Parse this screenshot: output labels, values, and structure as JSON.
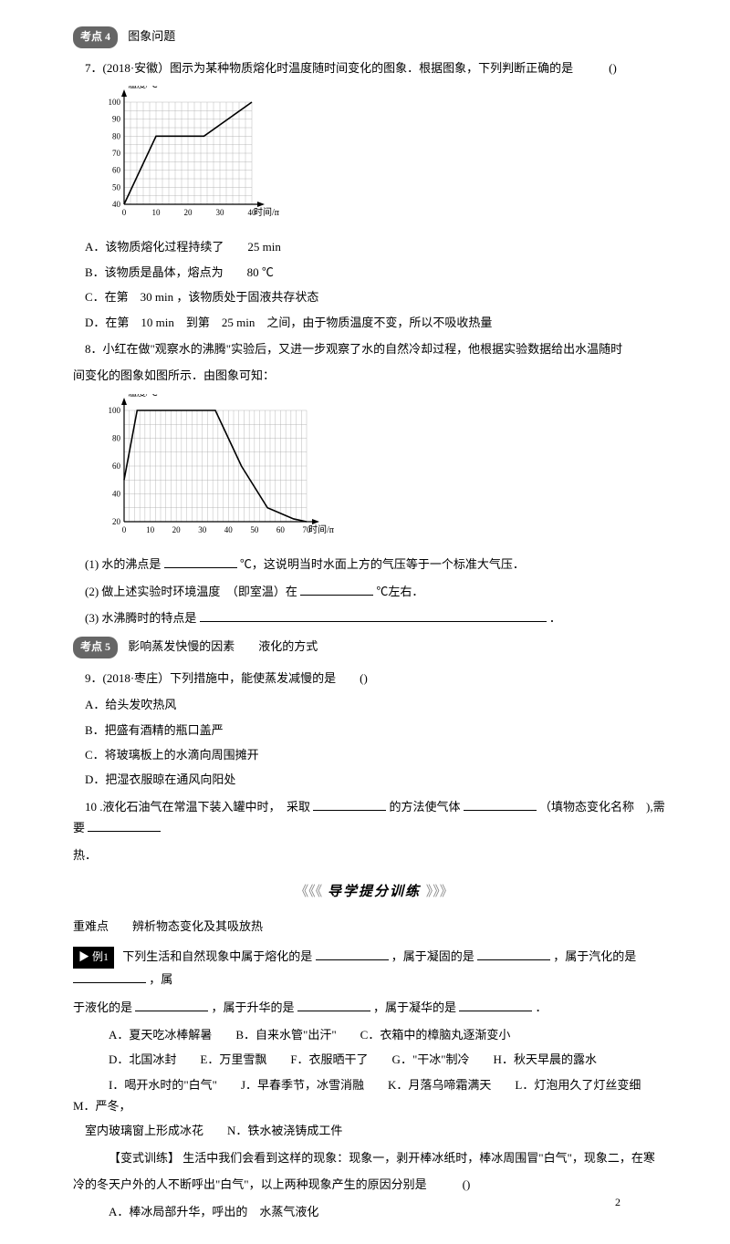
{
  "kaodian4": {
    "badge": "考点 4",
    "title": "图象问题"
  },
  "q7": {
    "stem": "7．(2018·安徽）图示为某种物质熔化时温度随时间变化的图象．根据图象，下列判断正确的是　　　()",
    "optA": "A．该物质熔化过程持续了　　25 min",
    "optB": "B．该物质是晶体，熔点为　　80 ℃",
    "optC": "C．在第　30 min ，该物质处于固液共存状态",
    "optD": "D．在第　10 min　到第　25 min　之间，由于物质温度不变，所以不吸收热量"
  },
  "chart7": {
    "ylabel": "温度/℃",
    "xlabel": "时间/min",
    "yticks": [
      40,
      50,
      60,
      70,
      80,
      90,
      100
    ],
    "xticks": [
      0,
      10,
      20,
      30,
      40
    ],
    "points": [
      [
        0,
        40
      ],
      [
        10,
        80
      ],
      [
        25,
        80
      ],
      [
        40,
        100
      ]
    ],
    "grid_color": "#aaa",
    "line_color": "#000",
    "bg": "#fff"
  },
  "q8": {
    "stem1": "8．小红在做\"观察水的沸腾\"实验后，又进一步观察了水的自然冷却过程，他根据实验数据给出水温随时",
    "stem2": "间变化的图象如图所示．由图象可知：",
    "sub1a": "(1) 水的沸点是",
    "sub1b": "℃，这说明当时水面上方的气压等于一个标准大气压．",
    "sub2a": "(2) 做上述实验时环境温度　（即室温）在",
    "sub2b": "℃左右．",
    "sub3a": "(3) 水沸腾时的特点是",
    "sub3b": "．"
  },
  "chart8": {
    "ylabel": "温度/℃",
    "xlabel": "时间/min",
    "yticks": [
      20,
      40,
      60,
      80,
      100
    ],
    "xticks": [
      0,
      10,
      20,
      30,
      40,
      50,
      60,
      70
    ],
    "points": [
      [
        0,
        50
      ],
      [
        5,
        100
      ],
      [
        35,
        100
      ],
      [
        45,
        60
      ],
      [
        55,
        30
      ],
      [
        65,
        22
      ],
      [
        70,
        20
      ]
    ],
    "grid_color": "#aaa",
    "line_color": "#000",
    "bg": "#fff"
  },
  "kaodian5": {
    "badge": "考点 5",
    "title": "影响蒸发快慢的因素　　液化的方式"
  },
  "q9": {
    "stem": "9．(2018·枣庄）下列措施中，能使蒸发减慢的是　　()",
    "optA": "A．给头发吹热风",
    "optB": "B．把盛有酒精的瓶口盖严",
    "optC": "C．将玻璃板上的水滴向周围摊开",
    "optD": "D．把湿衣服晾在通风向阳处"
  },
  "q10": {
    "part1": "10 .液化石油气在常温下装入罐中时，　采取",
    "part2": "的方法使气体",
    "part3": "（填物态变化名称　),需要",
    "part4": "热．"
  },
  "banner": {
    "left": "《《《",
    "text": "导学提分训练",
    "right": "》》》"
  },
  "difficulty": {
    "label": "重难点　　辨析物态变化及其吸放热"
  },
  "example1": {
    "tag": "▶ 例1",
    "line1a": "下列生活和自然现象中属于熔化的是",
    "line1b": "，属于凝固的是",
    "line1c": "，属于汽化的是",
    "line1d": "，属",
    "line2a": "于液化的是",
    "line2b": "，属于升华的是",
    "line2c": "，属于凝华的是",
    "line2d": "．",
    "optsA": "A．夏天吃冰棒解暑　　B．自来水管\"出汗\"　　C．衣箱中的樟脑丸逐渐变小",
    "optsD": "D．北国冰封　　E．万里雪飘　　F．衣服晒干了　　G．\"干冰\"制冷　　H．秋天早晨的露水",
    "optsI1": "I．喝开水时的\"白气\"　　J．早春季节，冰雪消融　　K．月落乌啼霜满天　　L．灯泡用久了灯丝变细　　M．严冬，",
    "optsI2": "室内玻璃窗上形成冰花　　N．铁水被浇铸成工件"
  },
  "variant": {
    "label": "【变式训练】",
    "line1": "生活中我们会看到这样的现象：现象一，剥开棒冰纸时，棒冰周围冒\"白气\"，现象二，在寒",
    "line2": "冷的冬天户外的人不断呼出\"白气\"，以上两种现象产生的原因分别是　　　()",
    "optA": "A．棒冰局部升华，呼出的　水蒸气液化"
  },
  "pageNum": "2"
}
